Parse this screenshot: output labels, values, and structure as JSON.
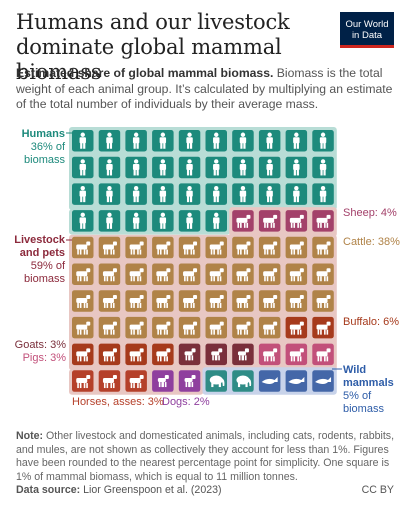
{
  "header": {
    "title": "Humans and our livestock dominate global mammal biomass",
    "logo_line1": "Our World",
    "logo_line2": "in Data"
  },
  "subtitle": {
    "bold": "Estimated share of global mammal biomass.",
    "text": " Biomass is the total weight of each animal group. It’s calculated by multiplying an estimate of the total number of individuals by their average mass."
  },
  "chart_data": {
    "type": "waffle",
    "rows": 10,
    "columns": 10,
    "unit": "One square is 1% of mammal biomass",
    "colors": {
      "humans": "#1d8a7c",
      "livestock_bg": "#e8c7c3",
      "wild_bg": "#c8d3ea",
      "humans_bg": "#b8ddd6"
    },
    "series": [
      {
        "name": "Humans",
        "value": 36,
        "color": "#1d8a7c",
        "icon": "human-icon"
      },
      {
        "name": "Sheep",
        "value": 4,
        "color": "#a3416a",
        "icon": "sheep-icon"
      },
      {
        "name": "Cattle",
        "value": 38,
        "color": "#b08348",
        "icon": "cattle-icon"
      },
      {
        "name": "Buffalo",
        "value": 6,
        "color": "#a63a1c",
        "icon": "buffalo-icon"
      },
      {
        "name": "Goats",
        "value": 3,
        "color": "#7a2f3b",
        "icon": "goat-icon"
      },
      {
        "name": "Pigs",
        "value": 3,
        "color": "#c2507a",
        "icon": "pig-icon"
      },
      {
        "name": "Horses, asses",
        "value": 3,
        "color": "#b5402a",
        "icon": "horse-icon"
      },
      {
        "name": "Dogs",
        "value": 2,
        "color": "#8f3f9e",
        "icon": "dog-icon"
      },
      {
        "name": "Wild mammals",
        "value": 5,
        "color": "#2f8c86",
        "icon": "wild-icon"
      }
    ],
    "wild_breakdown": [
      {
        "icon": "elephant-icon",
        "value": 2,
        "color": "#2f8c86"
      },
      {
        "icon": "whale-icon",
        "value": 3,
        "color": "#4467a8"
      }
    ]
  },
  "labels": {
    "humans_name": "Humans",
    "humans_value": "36% of",
    "humans_unit": "biomass",
    "livestock_name_1": "Livestock",
    "livestock_name_2": "and pets",
    "livestock_value": "59% of",
    "livestock_unit": "biomass",
    "sheep": "Sheep: 4%",
    "cattle": "Cattle: 38%",
    "buffalo": "Buffalo: 6%",
    "goats": "Goats: 3%",
    "pigs": "Pigs: 3%",
    "horses": "Horses, asses: 3%",
    "dogs": "Dogs: 2%",
    "wild_name_1": "Wild",
    "wild_name_2": "mammals",
    "wild_value": "5% of",
    "wild_unit": "biomass"
  },
  "footer": {
    "note_label": "Note:",
    "note_text": " Other livestock and domesticated animals, including cats, rodents, rabbits, and mules, are not shown as collectively they account for less than 1%. Figures have been rounded to the nearest percentage point for simplicity. One square is 1% of mammal biomass, which is equal to 11 million tonnes.",
    "source_label": "Data source:",
    "source_text": " Lior Greenspoon et al. (2023)",
    "license": "CC BY"
  }
}
